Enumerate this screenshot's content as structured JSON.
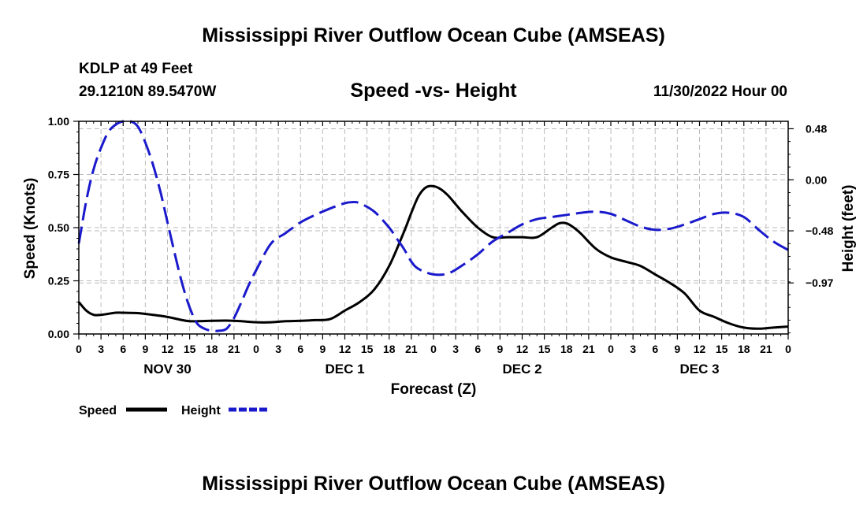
{
  "header": {
    "title": "Mississippi River Outflow Ocean Cube (AMSEAS)",
    "station": "KDLP at 49 Feet",
    "coords": "29.1210N  89.5470W",
    "subtitle": "Speed -vs- Height",
    "datetime": "11/30/2022 Hour 00"
  },
  "footer": {
    "title": "Mississippi River Outflow Ocean Cube (AMSEAS)"
  },
  "chart_data": {
    "type": "line",
    "xlabel": "Forecast (Z)",
    "ylabel": "Speed (Knots)",
    "y2label": "Height (feet)",
    "x_range": [
      0,
      96
    ],
    "x_tick_labels": [
      "0",
      "3",
      "6",
      "9",
      "12",
      "15",
      "18",
      "21",
      "0",
      "3",
      "6",
      "9",
      "12",
      "15",
      "18",
      "21",
      "0",
      "3",
      "6",
      "9",
      "12",
      "15",
      "18",
      "21",
      "0",
      "3",
      "6",
      "9",
      "12",
      "15",
      "18",
      "21",
      "0"
    ],
    "day_labels": [
      {
        "label": "NOV 30",
        "center_hour": 12
      },
      {
        "label": "DEC 1",
        "center_hour": 36
      },
      {
        "label": "DEC 2",
        "center_hour": 60
      },
      {
        "label": "DEC 3",
        "center_hour": 84
      }
    ],
    "y_range": [
      0,
      1.0
    ],
    "y_ticks": [
      0.0,
      0.25,
      0.5,
      0.75,
      1.0
    ],
    "y_tick_labels": [
      "0.00",
      "0.25",
      "0.50",
      "0.75",
      "1.00"
    ],
    "y2_range": [
      -1.45,
      0.55
    ],
    "y2_ticks": [
      0.48,
      0.0,
      -0.48,
      -0.97
    ],
    "y2_tick_labels": [
      "0.48",
      "0.00",
      "−0.48",
      "−0.97"
    ],
    "grid": true,
    "series": [
      {
        "name": "Speed",
        "axis": "left",
        "color": "#000000",
        "style": "solid",
        "x": [
          0,
          1,
          2,
          3,
          4,
          5,
          6,
          8,
          10,
          12,
          14,
          15,
          16,
          18,
          20,
          22,
          24,
          26,
          28,
          30,
          32,
          34,
          36,
          38,
          40,
          42,
          44,
          45,
          46,
          47,
          48,
          49,
          50,
          51,
          52,
          54,
          56,
          58,
          60,
          62,
          64,
          65,
          66,
          67,
          68,
          70,
          72,
          74,
          76,
          78,
          80,
          82,
          84,
          86,
          88,
          90,
          92,
          94,
          96
        ],
        "values": [
          0.15,
          0.11,
          0.09,
          0.09,
          0.095,
          0.1,
          0.1,
          0.098,
          0.09,
          0.08,
          0.065,
          0.06,
          0.06,
          0.062,
          0.063,
          0.06,
          0.055,
          0.055,
          0.06,
          0.062,
          0.065,
          0.07,
          0.11,
          0.15,
          0.21,
          0.32,
          0.48,
          0.57,
          0.65,
          0.69,
          0.695,
          0.68,
          0.65,
          0.61,
          0.57,
          0.5,
          0.455,
          0.455,
          0.455,
          0.455,
          0.5,
          0.52,
          0.52,
          0.5,
          0.47,
          0.4,
          0.36,
          0.34,
          0.32,
          0.28,
          0.24,
          0.19,
          0.11,
          0.08,
          0.05,
          0.03,
          0.025,
          0.03,
          0.035
        ]
      },
      {
        "name": "Height",
        "axis": "right",
        "color": "#1a1acc",
        "style": "dashed",
        "x": [
          0,
          1,
          2,
          3,
          4,
          5,
          6,
          7,
          8,
          9,
          10,
          11,
          12,
          13,
          14,
          15,
          16,
          17,
          18,
          19,
          20,
          21,
          22,
          23,
          24,
          26,
          28,
          30,
          32,
          34,
          36,
          37,
          38,
          40,
          42,
          43,
          44,
          45,
          46,
          48,
          50,
          52,
          54,
          56,
          58,
          60,
          62,
          64,
          66,
          68,
          70,
          72,
          74,
          76,
          78,
          80,
          82,
          84,
          86,
          88,
          90,
          92,
          94,
          96
        ],
        "values": [
          -0.6,
          -0.2,
          0.1,
          0.3,
          0.45,
          0.52,
          0.55,
          0.55,
          0.5,
          0.35,
          0.15,
          -0.1,
          -0.4,
          -0.7,
          -0.98,
          -1.2,
          -1.35,
          -1.4,
          -1.42,
          -1.42,
          -1.4,
          -1.3,
          -1.15,
          -0.99,
          -0.85,
          -0.6,
          -0.5,
          -0.4,
          -0.33,
          -0.27,
          -0.22,
          -0.21,
          -0.22,
          -0.3,
          -0.45,
          -0.55,
          -0.65,
          -0.77,
          -0.84,
          -0.89,
          -0.88,
          -0.8,
          -0.7,
          -0.58,
          -0.5,
          -0.42,
          -0.37,
          -0.35,
          -0.33,
          -0.31,
          -0.3,
          -0.32,
          -0.38,
          -0.44,
          -0.47,
          -0.46,
          -0.42,
          -0.37,
          -0.32,
          -0.31,
          -0.35,
          -0.47,
          -0.58,
          -0.66
        ]
      }
    ]
  }
}
